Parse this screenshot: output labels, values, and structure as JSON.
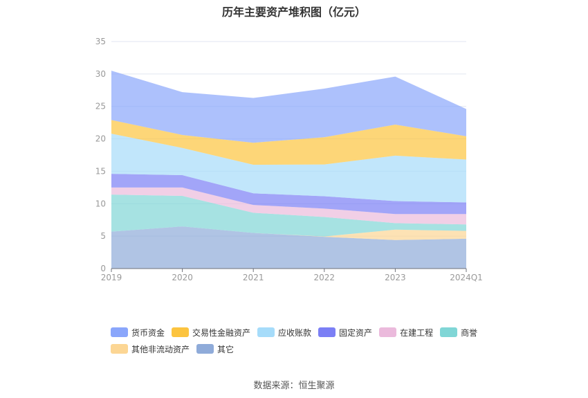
{
  "chart_data": {
    "type": "area",
    "stacked": true,
    "title": "历年主要资产堆积图（亿元）",
    "categories": [
      "2019",
      "2020",
      "2021",
      "2022",
      "2023",
      "2024Q1"
    ],
    "ylim": [
      0,
      35
    ],
    "yticks": [
      0,
      5,
      10,
      15,
      20,
      25,
      30,
      35
    ],
    "grid": true,
    "legend_position": "bottom",
    "series": [
      {
        "name": "其它",
        "color": "#8fabd9",
        "values": [
          5.7,
          6.5,
          5.5,
          4.9,
          4.4,
          4.6
        ]
      },
      {
        "name": "其他非流动资产",
        "color": "#fcd694",
        "values": [
          0,
          0,
          0,
          0.05,
          1.6,
          1.2
        ]
      },
      {
        "name": "商誉",
        "color": "#80d6d6",
        "values": [
          5.7,
          4.7,
          3.1,
          3.0,
          1.0,
          1.0
        ]
      },
      {
        "name": "在建工程",
        "color": "#ebbadc",
        "values": [
          1.1,
          1.3,
          1.2,
          1.3,
          1.4,
          1.6
        ]
      },
      {
        "name": "固定资产",
        "color": "#7b7ff5",
        "values": [
          2.1,
          1.9,
          1.8,
          1.9,
          2.0,
          1.8
        ]
      },
      {
        "name": "应收账款",
        "color": "#a6dcfa",
        "values": [
          6.2,
          4.2,
          4.4,
          4.9,
          7.0,
          6.6
        ]
      },
      {
        "name": "交易性金融资产",
        "color": "#fcc43f",
        "values": [
          2.1,
          2.0,
          3.4,
          4.2,
          4.8,
          3.6
        ]
      },
      {
        "name": "货币资金",
        "color": "#8aa6fb",
        "values": [
          7.6,
          6.6,
          6.9,
          7.5,
          7.4,
          4.2
        ]
      }
    ],
    "legend_order": [
      "货币资金",
      "交易性金融资产",
      "应收账款",
      "固定资产",
      "在建工程",
      "商誉",
      "其他非流动资产",
      "其它"
    ]
  },
  "source": "数据来源：恒生聚源"
}
